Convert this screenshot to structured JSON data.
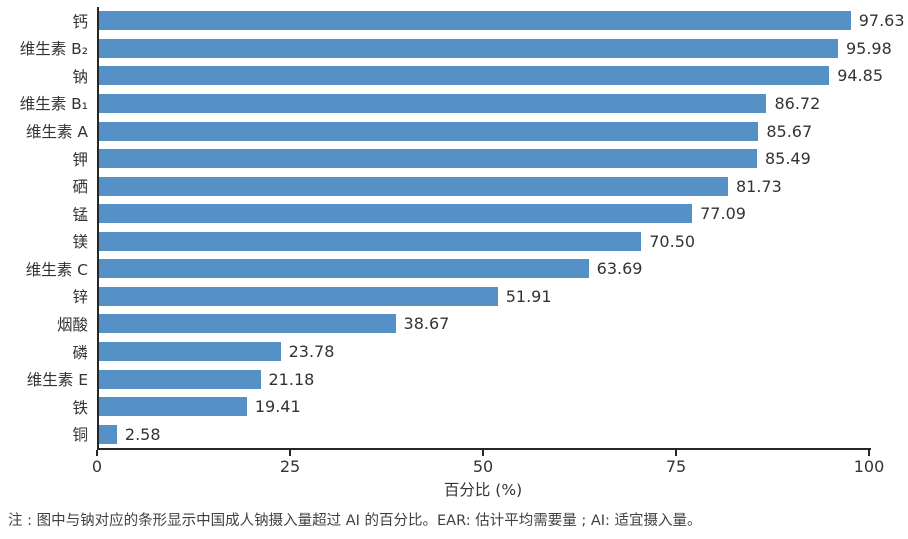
{
  "chart_data": {
    "type": "bar",
    "orientation": "horizontal",
    "title": "",
    "xlabel": "百分比 (%)",
    "ylabel": "",
    "xlim": [
      0,
      100
    ],
    "x_ticks": [
      0,
      25,
      50,
      75,
      100
    ],
    "grid": false,
    "legend": null,
    "bar_color": "#5591C6",
    "axis_color": "#262626",
    "categories": [
      "钙",
      "维生素 B₂",
      "钠",
      "维生素 B₁",
      "维生素 A",
      "钾",
      "硒",
      "锰",
      "镁",
      "维生素 C",
      "锌",
      "烟酸",
      "磷",
      "维生素 E",
      "铁",
      "铜"
    ],
    "values": [
      97.63,
      95.98,
      94.85,
      86.72,
      85.67,
      85.49,
      81.73,
      77.09,
      70.5,
      63.69,
      51.91,
      38.67,
      23.78,
      21.18,
      19.41,
      2.58
    ],
    "value_labels": [
      "97.63",
      "95.98",
      "94.85",
      "86.72",
      "85.67",
      "85.49",
      "81.73",
      "77.09",
      "70.50",
      "63.69",
      "51.91",
      "38.67",
      "23.78",
      "21.18",
      "19.41",
      "2.58"
    ]
  },
  "note": "注 : 图中与钠对应的条形显示中国成人钠摄入量超过 AI 的百分比。EAR: 估计平均需要量 ; AI: 适宜摄入量。"
}
